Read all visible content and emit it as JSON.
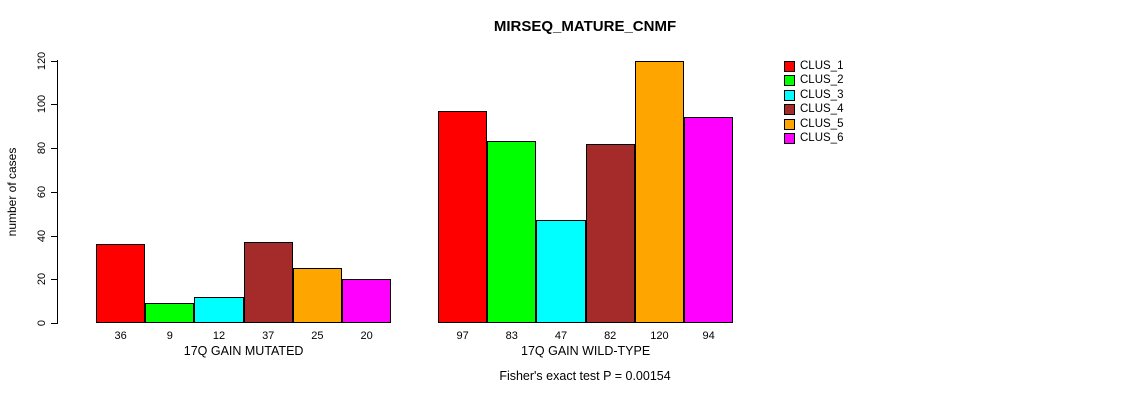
{
  "title": "MIRSEQ_MATURE_CNMF",
  "footer": "Fisher's exact test P = 0.00154",
  "chart_data": {
    "type": "bar",
    "title": "MIRSEQ_MATURE_CNMF",
    "ylabel": "number of cases",
    "xlabel": "",
    "ylim": [
      0,
      120
    ],
    "yticks": [
      0,
      20,
      40,
      60,
      80,
      100,
      120
    ],
    "grid": false,
    "legend_position": "right",
    "bar_value_labels": true,
    "categories": [
      "17Q GAIN MUTATED",
      "17Q GAIN WILD-TYPE"
    ],
    "series": [
      {
        "name": "CLUS_1",
        "color": "#FF0000",
        "values": [
          36,
          97
        ]
      },
      {
        "name": "CLUS_2",
        "color": "#00FF00",
        "values": [
          9,
          83
        ]
      },
      {
        "name": "CLUS_3",
        "color": "#00FFFF",
        "values": [
          12,
          47
        ]
      },
      {
        "name": "CLUS_4",
        "color": "#A52A2A",
        "values": [
          37,
          82
        ]
      },
      {
        "name": "CLUS_5",
        "color": "#FFA500",
        "values": [
          25,
          120
        ]
      },
      {
        "name": "CLUS_6",
        "color": "#FF00FF",
        "values": [
          20,
          94
        ]
      }
    ],
    "annotation": "Fisher's exact test P = 0.00154"
  }
}
